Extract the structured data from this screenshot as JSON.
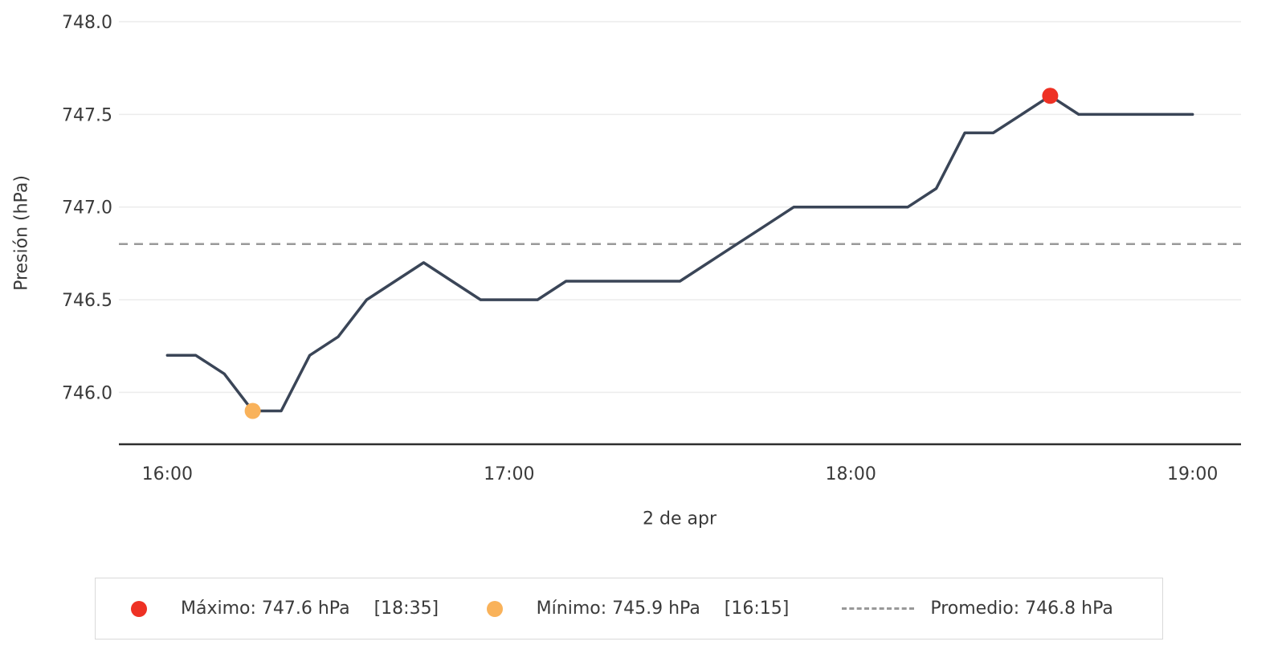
{
  "chart_data": {
    "type": "line",
    "title": "",
    "xlabel": "2 de apr",
    "ylabel": "Presión (hPa)",
    "series": [
      {
        "name": "Presión",
        "x_minutes": [
          0,
          5,
          10,
          15,
          20,
          25,
          30,
          35,
          40,
          45,
          50,
          55,
          60,
          65,
          70,
          75,
          80,
          85,
          90,
          95,
          100,
          105,
          110,
          115,
          120,
          125,
          130,
          135,
          140,
          145,
          150,
          155,
          160,
          165,
          170,
          175,
          180
        ],
        "times": [
          "16:00",
          "16:05",
          "16:10",
          "16:15",
          "16:20",
          "16:25",
          "16:30",
          "16:35",
          "16:40",
          "16:45",
          "16:50",
          "16:55",
          "17:00",
          "17:05",
          "17:10",
          "17:15",
          "17:20",
          "17:25",
          "17:30",
          "17:35",
          "17:40",
          "17:45",
          "17:50",
          "17:55",
          "18:00",
          "18:05",
          "18:10",
          "18:15",
          "18:20",
          "18:25",
          "18:30",
          "18:35",
          "18:40",
          "18:45",
          "18:50",
          "18:55",
          "19:00"
        ],
        "values": [
          746.2,
          746.2,
          746.1,
          745.9,
          745.9,
          746.2,
          746.3,
          746.5,
          746.6,
          746.7,
          746.6,
          746.5,
          746.5,
          746.5,
          746.6,
          746.6,
          746.6,
          746.6,
          746.6,
          746.7,
          746.8,
          746.9,
          747.0,
          747.0,
          747.0,
          747.0,
          747.0,
          747.1,
          747.4,
          747.4,
          747.5,
          747.6,
          747.5,
          747.5,
          747.5,
          747.5,
          747.5
        ]
      }
    ],
    "yticks": {
      "values": [
        746.0,
        746.5,
        747.0,
        747.5,
        748.0
      ],
      "labels": [
        "746.0",
        "746.5",
        "747.0",
        "747.5",
        "748.0"
      ]
    },
    "xticks": {
      "minutes": [
        0,
        60,
        120,
        180
      ],
      "labels": [
        "16:00",
        "17:00",
        "18:00",
        "19:00"
      ]
    },
    "ylim": [
      745.72,
      748.0
    ],
    "xlim_minutes": [
      -8.5,
      188.5
    ],
    "grid": true,
    "legend_position": "bottom",
    "annotations": {
      "average": {
        "value": 746.8,
        "style": "dashed"
      },
      "max": {
        "value": 747.6,
        "time": "18:35",
        "minutes": 155
      },
      "min": {
        "value": 745.9,
        "time": "16:15",
        "minutes": 15
      }
    },
    "colors": {
      "line": "#3a4557",
      "max": "#ee3124",
      "min": "#f9b25a",
      "average": "#999999",
      "grid": "#ececec",
      "axis": "#2e2e2e",
      "text": "#3a3a3a"
    }
  },
  "legend": {
    "max_label": "Máximo: 747.6 hPa",
    "max_time": "[18:35]",
    "min_label": "Mínimo: 745.9 hPa",
    "min_time": "[16:15]",
    "avg_label": "Promedio: 746.8 hPa"
  }
}
